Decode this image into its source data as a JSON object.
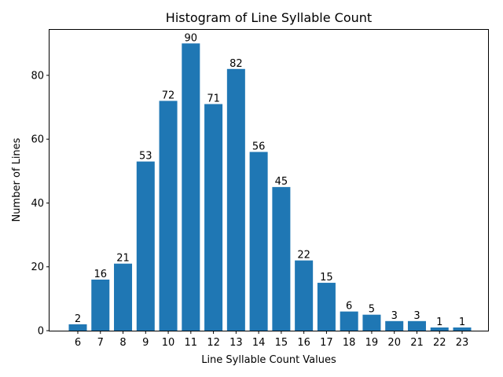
{
  "chart_data": {
    "type": "bar",
    "title": "Histogram of Line Syllable Count",
    "xlabel": "Line Syllable Count Values",
    "ylabel": "Number of Lines",
    "categories": [
      "6",
      "7",
      "8",
      "9",
      "10",
      "11",
      "12",
      "13",
      "14",
      "15",
      "16",
      "17",
      "18",
      "19",
      "20",
      "21",
      "22",
      "23"
    ],
    "values": [
      2,
      16,
      21,
      53,
      72,
      90,
      71,
      82,
      56,
      45,
      22,
      15,
      6,
      5,
      3,
      3,
      1,
      1
    ],
    "ylim": [
      0,
      94.5
    ],
    "yticks": [
      "0",
      "20",
      "40",
      "60",
      "80"
    ],
    "bar_color": "#1f77b4",
    "grid": false,
    "data_labels": true
  }
}
